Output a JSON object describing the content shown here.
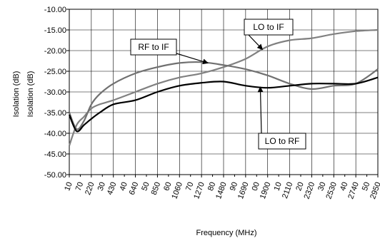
{
  "chart_data": {
    "type": "line",
    "xlabel": "Frequency (MHz)",
    "ylabel_outer": "Isolation (dB)",
    "ylabel_inner": "Isolation (dB)",
    "ylim": [
      -50,
      -10
    ],
    "ytick_labels": [
      "-10.00",
      "-15.00",
      "-20.00",
      "-25.00",
      "-30.00",
      "-35.00",
      "-40.00",
      "-45.00",
      "-50.00"
    ],
    "x_ticks_major": [
      "10",
      "220",
      "430",
      "640",
      "850",
      "1060",
      "1270",
      "1480",
      "1690",
      "1900",
      "2110",
      "2320",
      "2530",
      "2740",
      "2950"
    ],
    "x_ticks_minor": [
      "70",
      "30",
      "40",
      "50",
      "60",
      "70",
      "80",
      "90",
      "00",
      "10",
      "20",
      "30",
      "40",
      "50"
    ],
    "x_range": [
      10,
      2950
    ],
    "grid": true,
    "series": [
      {
        "name": "LO to IF",
        "color": "#808080",
        "x": [
          10,
          80,
          150,
          220,
          300,
          430,
          640,
          850,
          1060,
          1270,
          1480,
          1690,
          1900,
          2110,
          2320,
          2530,
          2740,
          2950
        ],
        "values": [
          -43,
          -38,
          -36,
          -34,
          -33,
          -32,
          -30,
          -28,
          -26.5,
          -25.5,
          -24,
          -22,
          -19,
          -17.5,
          -17,
          -16,
          -15.3,
          -15
        ]
      },
      {
        "name": "RF to IF",
        "color": "#707070",
        "x": [
          10,
          80,
          150,
          220,
          300,
          430,
          640,
          850,
          1060,
          1270,
          1480,
          1690,
          1900,
          2110,
          2320,
          2530,
          2740,
          2950
        ],
        "values": [
          -35,
          -39,
          -37,
          -33,
          -30.5,
          -28,
          -25.5,
          -24,
          -23,
          -22.8,
          -23.5,
          -24.5,
          -26,
          -28,
          -29.3,
          -28.5,
          -28,
          -24.5
        ]
      },
      {
        "name": "LO to RF",
        "color": "#000000",
        "x": [
          10,
          80,
          150,
          220,
          300,
          430,
          640,
          850,
          1060,
          1270,
          1480,
          1690,
          1900,
          2110,
          2320,
          2530,
          2740,
          2950
        ],
        "values": [
          -35.5,
          -39.5,
          -38,
          -36.5,
          -35,
          -33,
          -32,
          -30,
          -28.5,
          -27.8,
          -27.5,
          -28.5,
          -29,
          -28.5,
          -28,
          -28,
          -28,
          -26.5
        ]
      }
    ],
    "callouts": [
      {
        "label": "RF to IF",
        "series": 1,
        "point_x": 1330
      },
      {
        "label": "LO to IF",
        "series": 0,
        "point_x": 1850
      },
      {
        "label": "LO to RF",
        "series": 2,
        "point_x": 1830
      }
    ]
  }
}
